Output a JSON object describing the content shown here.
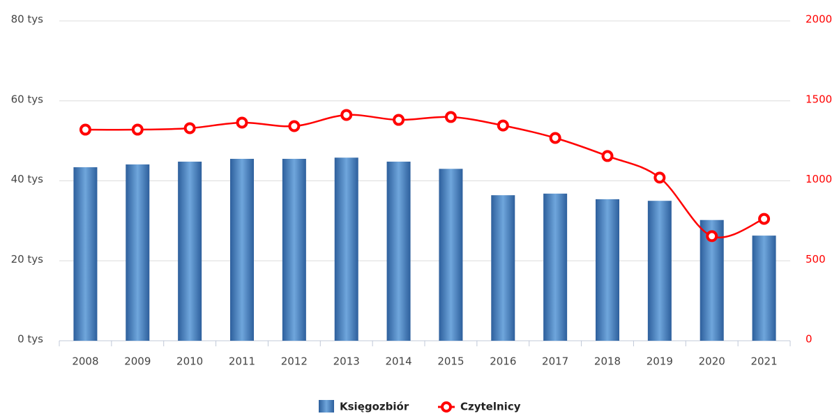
{
  "chart_data": {
    "type": "bar_line",
    "categories": [
      "2008",
      "2009",
      "2010",
      "2011",
      "2012",
      "2013",
      "2014",
      "2015",
      "2016",
      "2017",
      "2018",
      "2019",
      "2020",
      "2021"
    ],
    "series": [
      {
        "name": "Księgozbiór",
        "type": "bar",
        "color": "#3f7ec0",
        "values": [
          43.4,
          44.1,
          44.8,
          45.5,
          45.5,
          45.8,
          44.8,
          43.0,
          36.4,
          36.8,
          35.4,
          35.0,
          30.2,
          26.3
        ]
      },
      {
        "name": "Czytelnicy",
        "type": "line",
        "axis": "y2",
        "color": "#ff0000",
        "values": [
          1320,
          1320,
          1329,
          1364,
          1342,
          1412,
          1381,
          1399,
          1346,
          1268,
          1155,
          1020,
          654,
          762
        ]
      }
    ],
    "ylim": [
      0,
      80
    ],
    "yticks": [
      {
        "value": 0,
        "label": "0 tys"
      },
      {
        "value": 20,
        "label": "20 tys"
      },
      {
        "value": 40,
        "label": "40 tys"
      },
      {
        "value": 60,
        "label": "60 tys"
      },
      {
        "value": 80,
        "label": "80 tys"
      }
    ],
    "y2lim": [
      0,
      2000
    ],
    "y2ticks": [
      0,
      500,
      1000,
      1500,
      2000
    ],
    "grid": true
  }
}
